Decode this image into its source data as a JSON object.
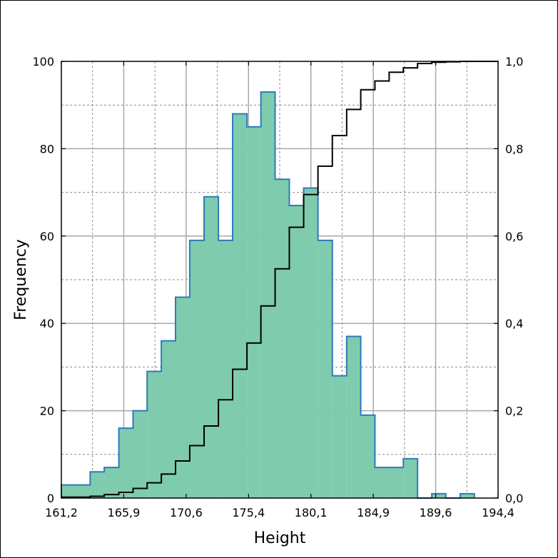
{
  "chart_data": {
    "type": "histogram",
    "xlabel": "Height",
    "ylabel": "Frequency",
    "xlim": [
      161.2,
      194.4
    ],
    "ylim": [
      0,
      100
    ],
    "y2lim": [
      0,
      1.0
    ],
    "x_ticks": [
      "161,2",
      "165,9",
      "170,6",
      "175,4",
      "180,1",
      "184,9",
      "189,6",
      "194,4"
    ],
    "y_ticks": [
      "0",
      "20",
      "40",
      "60",
      "80",
      "100"
    ],
    "y2_ticks": [
      "0,0",
      "0,2",
      "0,4",
      "0,6",
      "0,8",
      "1,0"
    ],
    "grid": true,
    "bin_edges": [
      161.2,
      163.39,
      164.46,
      165.57,
      166.65,
      167.72,
      168.8,
      169.88,
      170.96,
      172.05,
      173.14,
      174.22,
      175.31,
      176.37,
      177.45,
      178.53,
      179.62,
      180.71,
      181.8,
      182.89,
      183.96,
      185.04,
      186.12,
      187.2,
      188.28,
      189.36,
      190.43,
      191.52,
      192.6
    ],
    "frequencies": [
      3,
      6,
      7,
      16,
      20,
      29,
      36,
      46,
      59,
      69,
      59,
      88,
      85,
      93,
      73,
      67,
      71,
      59,
      28,
      37,
      19,
      7,
      7,
      9,
      0,
      1,
      0,
      1
    ],
    "cumulative": [
      0.002,
      0.004,
      0.008,
      0.013,
      0.022,
      0.035,
      0.055,
      0.085,
      0.12,
      0.165,
      0.225,
      0.295,
      0.355,
      0.44,
      0.525,
      0.62,
      0.695,
      0.76,
      0.83,
      0.89,
      0.935,
      0.955,
      0.975,
      0.985,
      0.995,
      0.998,
      0.999,
      1.0
    ],
    "colors": {
      "bar_fill": "#7fcbad",
      "bar_edge": "#2b7bbb",
      "cumulative_line": "#000000",
      "grid_major": "#a8a8a8",
      "grid_minor": "#8a8a8a"
    }
  }
}
